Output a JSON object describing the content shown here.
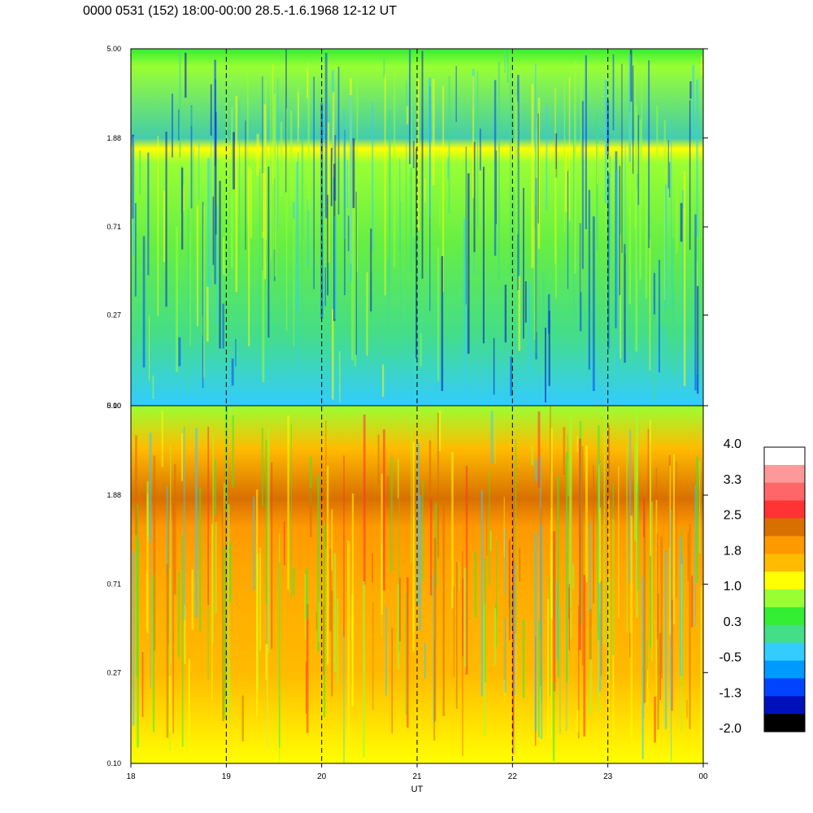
{
  "title": "0000 0531 (152) 18:00-00:00 28.5.-1.6.1968  12-12 UT",
  "chart_data": {
    "type": "heatmap",
    "panels": [
      {
        "name": "upper",
        "yticks": [
          "5.00",
          "1.88",
          "0.71",
          "0.27",
          "0.10"
        ],
        "ylim": [
          0.1,
          5.0
        ],
        "yscale": "log"
      },
      {
        "name": "lower",
        "yticks": [
          "5.00",
          "1.88",
          "0.71",
          "0.27",
          "0.10"
        ],
        "ylim": [
          0.1,
          5.0
        ],
        "yscale": "log"
      }
    ],
    "xticks": [
      "18",
      "19",
      "20",
      "21",
      "22",
      "23",
      "00"
    ],
    "xlabel": "UT",
    "xlim": [
      18,
      24
    ],
    "hour_markers": [
      19,
      20,
      21,
      22,
      23
    ],
    "colorbar": {
      "labels": [
        "4.0",
        "3.3",
        "2.5",
        "1.8",
        "1.0",
        "0.3",
        "-0.5",
        "-1.3",
        "-2.0"
      ],
      "colors": [
        "#ffffff",
        "#ff9999",
        "#ff6666",
        "#ff3333",
        "#d87000",
        "#ff9900",
        "#ffbb00",
        "#ffff00",
        "#99ff33",
        "#33ee33",
        "#44dd88",
        "#33ccff",
        "#0099ff",
        "#0044ff",
        "#0011bb",
        "#000000"
      ]
    }
  }
}
